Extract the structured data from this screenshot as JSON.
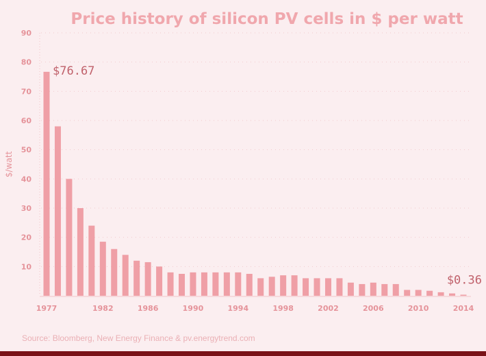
{
  "colors": {
    "background": "#fbeef0",
    "bar": "#ef9fa6",
    "title": "#f0a7ad",
    "axis_text": "#e5939a",
    "annotation": "#c0616b",
    "bottom_bar": "#7a1218"
  },
  "chart_data": {
    "type": "bar",
    "title": "Price history of silicon PV cells in $ per watt",
    "xlabel": "",
    "ylabel": "$/watt",
    "ylim": [
      0,
      90
    ],
    "yticks": [
      10,
      20,
      30,
      40,
      50,
      60,
      70,
      80,
      90
    ],
    "xtick_labels": [
      "1977",
      "1982",
      "1986",
      "1990",
      "1994",
      "1998",
      "2002",
      "2006",
      "2010",
      "2014"
    ],
    "grid": true,
    "categories": [
      1977,
      1978,
      1979,
      1980,
      1981,
      1982,
      1983,
      1984,
      1985,
      1986,
      1987,
      1988,
      1989,
      1990,
      1991,
      1992,
      1993,
      1994,
      1995,
      1996,
      1997,
      1998,
      1999,
      2000,
      2001,
      2002,
      2003,
      2004,
      2005,
      2006,
      2007,
      2008,
      2009,
      2010,
      2011,
      2012,
      2013,
      2014
    ],
    "values": [
      76.67,
      58,
      40,
      30,
      24,
      18.5,
      16,
      14,
      12,
      11.5,
      10,
      8,
      7.5,
      8,
      8,
      8,
      8,
      8,
      7.5,
      6,
      6.5,
      7,
      7,
      6,
      6,
      6,
      6,
      4.5,
      4,
      4.5,
      4,
      4,
      2,
      2,
      1.7,
      1.2,
      0.8,
      0.36
    ],
    "annotations": [
      {
        "category": 1977,
        "text": "$76.67"
      },
      {
        "category": 2014,
        "text": "$0.36"
      }
    ]
  },
  "footer": {
    "source": "Source: Bloomberg, New Energy Finance & pv.energytrend.com"
  }
}
